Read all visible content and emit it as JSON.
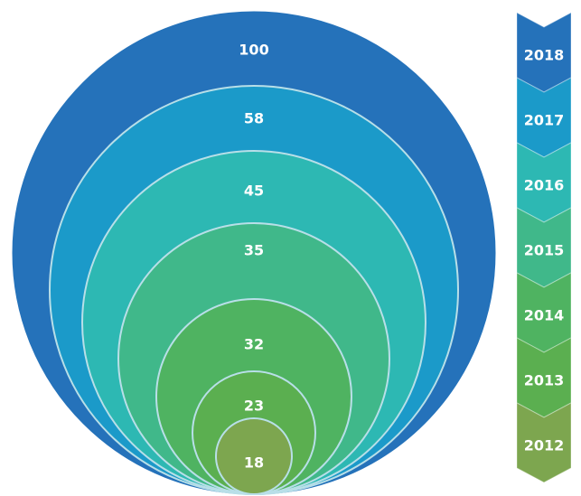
{
  "chart_data": {
    "type": "nested-circles",
    "values": [
      100,
      58,
      45,
      35,
      32,
      23,
      18
    ],
    "years": [
      "2018",
      "2017",
      "2016",
      "2015",
      "2014",
      "2013",
      "2012"
    ],
    "colors": [
      "#2572BA",
      "#1B9AC9",
      "#2DB8B3",
      "#40B88A",
      "#4FB361",
      "#5BAF50",
      "#7DA64F"
    ]
  }
}
